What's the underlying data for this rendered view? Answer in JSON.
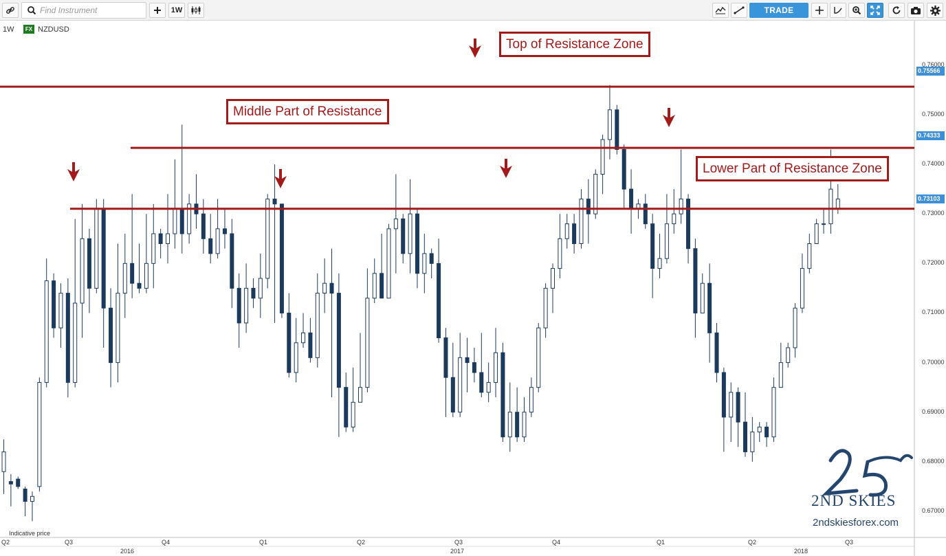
{
  "toolbar": {
    "search_placeholder": "Find Instrument",
    "interval_button": "1W",
    "trade_label": "TRADE",
    "icons_left": [
      "link-icon",
      "search-icon",
      "plus-icon",
      "candles-icon"
    ],
    "icons_right": [
      "indicators-icon",
      "trendline-icon",
      "crosshair-icon",
      "curve-icon",
      "zoom-icon",
      "fullscreen-icon",
      "refresh-icon",
      "camera-icon",
      "settings-icon"
    ]
  },
  "header": {
    "interval": "1W",
    "badge": "FX",
    "symbol": "NZDUSD"
  },
  "annotations": {
    "top": "Top of Resistance Zone",
    "middle": "Middle Part of Resistance",
    "lower": "Lower Part of Resistance Zone"
  },
  "indicative_note": "Indicative price",
  "price_tags": {
    "top": "0.75566",
    "middle": "0.74333",
    "lower": "0.73103"
  },
  "colors": {
    "bull": "#ffffff",
    "bear": "#1b3a5c",
    "resistance": "#a31a1a",
    "tag": "#3d8fd8"
  },
  "watermark": {
    "text": "2ND SKIES",
    "url": "2ndskiesforex.com"
  },
  "chart_data": {
    "type": "candlestick",
    "symbol": "NZDUSD",
    "interval": "1W",
    "ylim": [
      0.665,
      0.7665
    ],
    "yticks": [
      "0.76000",
      "0.75000",
      "0.74000",
      "0.73000",
      "0.72000",
      "0.71000",
      "0.70000",
      "0.69000",
      "0.68000",
      "0.67000"
    ],
    "xticks": [
      "Q2",
      "Q3",
      "Q4",
      "Q1",
      "Q2",
      "Q3",
      "Q4",
      "Q1",
      "Q2",
      "Q3"
    ],
    "years": [
      "2016",
      "2017",
      "2018"
    ],
    "resistance_levels": [
      0.75566,
      0.74333,
      0.73103
    ],
    "candles": [
      [
        0.678,
        0.682,
        0.6735,
        0.6845
      ],
      [
        0.676,
        0.6755,
        0.671,
        0.6775
      ],
      [
        0.6765,
        0.675,
        0.6745,
        0.677
      ],
      [
        0.6745,
        0.672,
        0.669,
        0.675
      ],
      [
        0.672,
        0.673,
        0.668,
        0.674
      ],
      [
        0.675,
        0.696,
        0.674,
        0.697
      ],
      [
        0.696,
        0.7165,
        0.695,
        0.721
      ],
      [
        0.7165,
        0.707,
        0.705,
        0.718
      ],
      [
        0.707,
        0.714,
        0.703,
        0.716
      ],
      [
        0.714,
        0.696,
        0.693,
        0.717
      ],
      [
        0.696,
        0.712,
        0.695,
        0.729
      ],
      [
        0.712,
        0.725,
        0.705,
        0.732
      ],
      [
        0.725,
        0.715,
        0.71,
        0.727
      ],
      [
        0.715,
        0.731,
        0.714,
        0.733
      ],
      [
        0.731,
        0.711,
        0.703,
        0.733
      ],
      [
        0.711,
        0.7,
        0.695,
        0.715
      ],
      [
        0.7,
        0.714,
        0.696,
        0.724
      ],
      [
        0.714,
        0.72,
        0.709,
        0.726
      ],
      [
        0.72,
        0.716,
        0.713,
        0.734
      ],
      [
        0.716,
        0.715,
        0.714,
        0.724
      ],
      [
        0.715,
        0.72,
        0.714,
        0.73
      ],
      [
        0.72,
        0.726,
        0.715,
        0.732
      ],
      [
        0.726,
        0.724,
        0.721,
        0.727
      ],
      [
        0.724,
        0.726,
        0.72,
        0.734
      ],
      [
        0.726,
        0.731,
        0.723,
        0.741
      ],
      [
        0.731,
        0.726,
        0.722,
        0.748
      ],
      [
        0.726,
        0.732,
        0.724,
        0.734
      ],
      [
        0.732,
        0.73,
        0.727,
        0.738
      ],
      [
        0.73,
        0.725,
        0.722,
        0.733
      ],
      [
        0.725,
        0.722,
        0.72,
        0.73
      ],
      [
        0.722,
        0.727,
        0.721,
        0.733
      ],
      [
        0.727,
        0.726,
        0.723,
        0.731
      ],
      [
        0.726,
        0.715,
        0.711,
        0.729
      ],
      [
        0.715,
        0.708,
        0.703,
        0.718
      ],
      [
        0.708,
        0.715,
        0.706,
        0.72
      ],
      [
        0.715,
        0.713,
        0.711,
        0.717
      ],
      [
        0.713,
        0.717,
        0.709,
        0.722
      ],
      [
        0.717,
        0.733,
        0.715,
        0.734
      ],
      [
        0.733,
        0.732,
        0.708,
        0.74
      ],
      [
        0.732,
        0.71,
        0.709,
        0.732
      ],
      [
        0.71,
        0.698,
        0.697,
        0.714
      ],
      [
        0.698,
        0.704,
        0.696,
        0.709
      ],
      [
        0.704,
        0.706,
        0.703,
        0.71
      ],
      [
        0.706,
        0.701,
        0.7,
        0.709
      ],
      [
        0.701,
        0.714,
        0.699,
        0.718
      ],
      [
        0.714,
        0.716,
        0.71,
        0.721
      ],
      [
        0.716,
        0.714,
        0.693,
        0.723
      ],
      [
        0.714,
        0.695,
        0.685,
        0.718
      ],
      [
        0.695,
        0.687,
        0.686,
        0.698
      ],
      [
        0.687,
        0.692,
        0.686,
        0.699
      ],
      [
        0.692,
        0.695,
        0.692,
        0.706
      ],
      [
        0.695,
        0.713,
        0.694,
        0.719
      ],
      [
        0.713,
        0.718,
        0.712,
        0.721
      ],
      [
        0.718,
        0.713,
        0.713,
        0.726
      ],
      [
        0.713,
        0.727,
        0.713,
        0.728
      ],
      [
        0.727,
        0.729,
        0.718,
        0.738
      ],
      [
        0.729,
        0.722,
        0.72,
        0.73
      ],
      [
        0.722,
        0.73,
        0.718,
        0.737
      ],
      [
        0.73,
        0.718,
        0.715,
        0.731
      ],
      [
        0.718,
        0.722,
        0.714,
        0.726
      ],
      [
        0.722,
        0.72,
        0.717,
        0.723
      ],
      [
        0.72,
        0.705,
        0.704,
        0.725
      ],
      [
        0.705,
        0.697,
        0.689,
        0.707
      ],
      [
        0.697,
        0.69,
        0.689,
        0.704
      ],
      [
        0.69,
        0.701,
        0.689,
        0.706
      ],
      [
        0.701,
        0.7,
        0.694,
        0.705
      ],
      [
        0.7,
        0.698,
        0.696,
        0.703
      ],
      [
        0.698,
        0.694,
        0.693,
        0.706
      ],
      [
        0.694,
        0.696,
        0.692,
        0.7
      ],
      [
        0.696,
        0.702,
        0.693,
        0.707
      ],
      [
        0.702,
        0.685,
        0.684,
        0.704
      ],
      [
        0.685,
        0.69,
        0.682,
        0.696
      ],
      [
        0.69,
        0.685,
        0.684,
        0.695
      ],
      [
        0.685,
        0.69,
        0.684,
        0.693
      ],
      [
        0.69,
        0.695,
        0.689,
        0.697
      ],
      [
        0.695,
        0.707,
        0.694,
        0.708
      ],
      [
        0.707,
        0.715,
        0.705,
        0.716
      ],
      [
        0.715,
        0.719,
        0.71,
        0.72
      ],
      [
        0.719,
        0.725,
        0.717,
        0.73
      ],
      [
        0.725,
        0.728,
        0.723,
        0.73
      ],
      [
        0.728,
        0.724,
        0.722,
        0.73
      ],
      [
        0.724,
        0.733,
        0.723,
        0.735
      ],
      [
        0.733,
        0.73,
        0.724,
        0.737
      ],
      [
        0.73,
        0.738,
        0.729,
        0.739
      ],
      [
        0.738,
        0.745,
        0.734,
        0.746
      ],
      [
        0.745,
        0.751,
        0.741,
        0.756
      ],
      [
        0.751,
        0.743,
        0.742,
        0.752
      ],
      [
        0.743,
        0.735,
        0.731,
        0.744
      ],
      [
        0.735,
        0.731,
        0.726,
        0.739
      ],
      [
        0.731,
        0.732,
        0.729,
        0.733
      ],
      [
        0.732,
        0.728,
        0.727,
        0.734
      ],
      [
        0.728,
        0.719,
        0.713,
        0.73
      ],
      [
        0.719,
        0.721,
        0.717,
        0.726
      ],
      [
        0.721,
        0.728,
        0.72,
        0.734
      ],
      [
        0.728,
        0.73,
        0.726,
        0.735
      ],
      [
        0.73,
        0.733,
        0.728,
        0.743
      ],
      [
        0.733,
        0.723,
        0.72,
        0.734
      ],
      [
        0.723,
        0.71,
        0.705,
        0.725
      ],
      [
        0.71,
        0.716,
        0.71,
        0.718
      ],
      [
        0.716,
        0.706,
        0.7,
        0.72
      ],
      [
        0.706,
        0.698,
        0.696,
        0.708
      ],
      [
        0.698,
        0.689,
        0.682,
        0.699
      ],
      [
        0.689,
        0.694,
        0.684,
        0.696
      ],
      [
        0.694,
        0.688,
        0.683,
        0.695
      ],
      [
        0.688,
        0.682,
        0.681,
        0.694
      ],
      [
        0.682,
        0.686,
        0.68,
        0.689
      ],
      [
        0.686,
        0.687,
        0.684,
        0.688
      ],
      [
        0.687,
        0.685,
        0.683,
        0.688
      ],
      [
        0.685,
        0.695,
        0.684,
        0.697
      ],
      [
        0.695,
        0.7,
        0.695,
        0.704
      ],
      [
        0.7,
        0.703,
        0.699,
        0.704
      ],
      [
        0.703,
        0.711,
        0.701,
        0.712
      ],
      [
        0.711,
        0.719,
        0.71,
        0.722
      ],
      [
        0.719,
        0.724,
        0.718,
        0.726
      ],
      [
        0.724,
        0.728,
        0.724,
        0.729
      ],
      [
        0.728,
        0.728,
        0.726,
        0.731
      ],
      [
        0.728,
        0.735,
        0.726,
        0.743
      ],
      [
        0.731,
        0.733,
        0.73,
        0.736
      ]
    ]
  }
}
